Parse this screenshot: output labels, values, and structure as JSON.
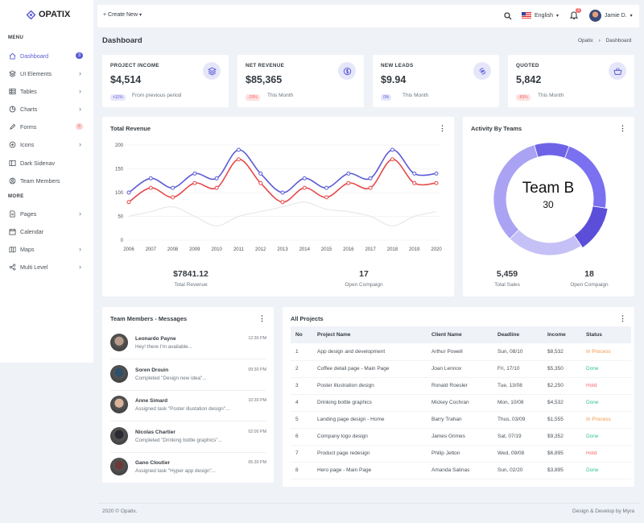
{
  "brand": {
    "name": "OPATIX"
  },
  "sidebar": {
    "menu_title": "MENU",
    "more_title": "MORE",
    "items": [
      {
        "label": "Dashboard",
        "badge": "3",
        "icon": "home-icon"
      },
      {
        "label": "UI Elements",
        "icon": "layers-icon"
      },
      {
        "label": "Tables",
        "icon": "table-icon"
      },
      {
        "label": "Charts",
        "icon": "chart-icon"
      },
      {
        "label": "Forms",
        "badge": "6",
        "icon": "form-icon"
      },
      {
        "label": "Icons",
        "icon": "icons-icon"
      },
      {
        "label": "Dark Sidenav",
        "icon": "sidenav-icon"
      },
      {
        "label": "Team Members",
        "icon": "users-icon"
      }
    ],
    "more_items": [
      {
        "label": "Pages",
        "icon": "pages-icon"
      },
      {
        "label": "Calendar",
        "icon": "calendar-icon"
      },
      {
        "label": "Maps",
        "icon": "map-icon"
      },
      {
        "label": "Multi Level",
        "icon": "share-icon"
      }
    ]
  },
  "topbar": {
    "create_new": "Create New",
    "language": "English",
    "notification_count": "3",
    "user": "Jamie D."
  },
  "page": {
    "title": "Dashboard",
    "breadcrumb": [
      "Opatix",
      "Dashboard"
    ]
  },
  "stats": [
    {
      "title": "PROJECT INCOME",
      "value": "$4,514",
      "badge": "+11%",
      "note": "From previous period",
      "badge_color": "#5b5bd6",
      "icon": "layers-icon"
    },
    {
      "title": "NET REVENUE",
      "value": "$85,365",
      "badge": "-29%",
      "note": "This Month",
      "badge_color": "#f46a6a",
      "icon": "dollar-icon"
    },
    {
      "title": "NEW LEADS",
      "value": "$9.94",
      "badge": "0%",
      "note": "This Month",
      "badge_color": "#5b5bd6",
      "icon": "leads-icon"
    },
    {
      "title": "QUOTED",
      "value": "5,842",
      "badge": "-89%",
      "note": "This Month",
      "badge_color": "#f46a6a",
      "icon": "basket-icon"
    }
  ],
  "revenue": {
    "title": "Total Revenue",
    "value1": "$7841.12",
    "label1": "Total Revenue",
    "value2": "17",
    "label2": "Open Compaign"
  },
  "activity": {
    "title": "Activity By Teams",
    "team": "Team B",
    "team_count": "30",
    "value1": "5,459",
    "label1": "Total Sales",
    "value2": "18",
    "label2": "Open Compaign"
  },
  "chart_data": [
    {
      "type": "line",
      "title": "Total Revenue",
      "x": [
        "2006",
        "2007",
        "2008",
        "2009",
        "2010",
        "2011",
        "2012",
        "2013",
        "2014",
        "2015",
        "2016",
        "2017",
        "2018",
        "2019",
        "2020"
      ],
      "ylim": [
        0,
        200
      ],
      "yticks": [
        "0",
        "50",
        "100",
        "150",
        "200"
      ],
      "grid": true,
      "series": [
        {
          "values": [
            100,
            130,
            110,
            140,
            130,
            190,
            140,
            100,
            130,
            110,
            140,
            130,
            190,
            140,
            140
          ],
          "color": "#5b5bd6"
        },
        {
          "values": [
            80,
            110,
            90,
            120,
            110,
            170,
            120,
            80,
            110,
            90,
            120,
            110,
            170,
            120,
            120
          ],
          "color": "#e6494a"
        },
        {
          "values": [
            50,
            60,
            70,
            50,
            30,
            50,
            60,
            70,
            80,
            65,
            60,
            50,
            30,
            50,
            60
          ],
          "color": "#e8e8ec"
        }
      ]
    },
    {
      "type": "pie",
      "title": "Activity By Teams",
      "values": [
        22,
        13,
        22,
        33,
        10
      ],
      "colors": [
        "#7a70f0",
        "#5b4fd9",
        "#c5c0f5",
        "#aaa3f3",
        "#6e63e6"
      ]
    }
  ],
  "messages": {
    "title": "Team Members - Messages",
    "items": [
      {
        "name": "Leonardo Payne",
        "text": "Hey! there I'm available...",
        "time": "12:30 PM",
        "color": "#b89a8a"
      },
      {
        "name": "Soren Drouin",
        "text": "Completed \"Design new idea\"...",
        "time": "09:30 PM",
        "color": "#2f4f6a"
      },
      {
        "name": "Anne Simard",
        "text": "Assigned task \"Poster illustation design\"...",
        "time": "10:30 PM",
        "color": "#d9b49a"
      },
      {
        "name": "Nicolas Chartier",
        "text": "Completed \"Drinking bottle graphics\"...",
        "time": "02:00 PM",
        "color": "#2a2a33"
      },
      {
        "name": "Gano Cloutier",
        "text": "Assigned task \"Hyper app design\"...",
        "time": "05:30 PM",
        "color": "#6b3a3a"
      }
    ]
  },
  "projects": {
    "title": "All Projects",
    "headers": [
      "No",
      "Project Name",
      "Client Name",
      "Deadline",
      "Income",
      "Status"
    ],
    "rows": [
      [
        "1",
        "App design and development",
        "Arthur Powell",
        "Sun, 08/10",
        "$8,532",
        "In Process"
      ],
      [
        "2",
        "Coffee detail page - Main Page",
        "Joan Lennox",
        "Fri, 17/10",
        "$5,350",
        "Done"
      ],
      [
        "3",
        "Poster illustration design",
        "Ronald Roesler",
        "Tue, 13/08",
        "$2,250",
        "Hold"
      ],
      [
        "4",
        "Drinking bottle graphics",
        "Mickey Cochran",
        "Mon, 10/08",
        "$4,532",
        "Done"
      ],
      [
        "5",
        "Landing page design - Home",
        "Barry Trahan",
        "Thus, 03/09",
        "$1,555",
        "In Process"
      ],
      [
        "6",
        "Company logo design",
        "James Grimes",
        "Sat, 07/19",
        "$9,352",
        "Done"
      ],
      [
        "7",
        "Product page redesign",
        "Philip Jetton",
        "Wed, 09/08",
        "$6,895",
        "Hold"
      ],
      [
        "8",
        "Hero page - Main Page",
        "Amanda Salinas",
        "Sun, 02/20",
        "$3,895",
        "Done"
      ]
    ],
    "status_colors": {
      "In Process": "#f1964b",
      "Done": "#34c38f",
      "Hold": "#f46a6a"
    }
  },
  "footer": {
    "left": "2020 © Opatix.",
    "right": "Design & Develop by Myra"
  }
}
